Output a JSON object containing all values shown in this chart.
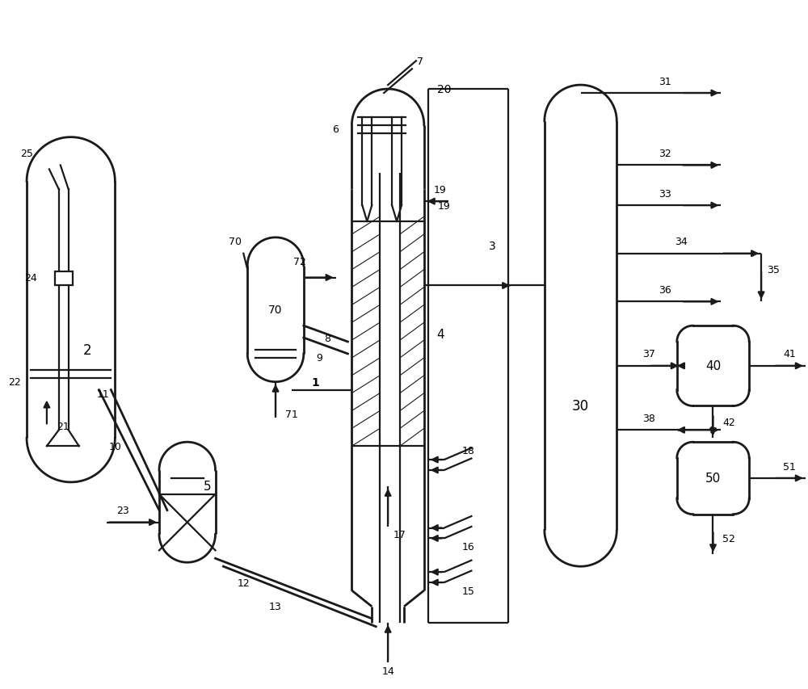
{
  "bg": "#ffffff",
  "lc": "#1a1a1a",
  "lw": 1.6,
  "lw2": 2.0,
  "figsize": [
    10.0,
    8.54
  ],
  "dpi": 100
}
